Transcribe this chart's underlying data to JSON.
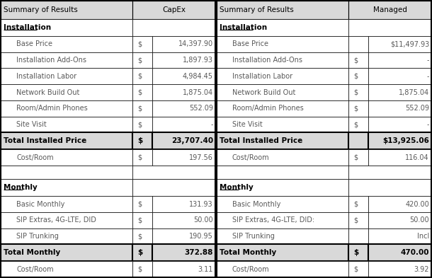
{
  "title_bg": "#d9d9d9",
  "total_bg": "#d9d9d9",
  "cell_bg": "#ffffff",
  "border_color": "#000000",
  "text_color": "#000000",
  "gray_text": "#595959",
  "fig_bg": "#ffffff",
  "left_table": {
    "header_label": "Summary of Results",
    "col_label": "CapEx",
    "sections": [
      {
        "section_label": "Installation",
        "rows": [
          {
            "label": "Base Price",
            "dollar": "$",
            "value": "14,397.90"
          },
          {
            "label": "Installation Add-Ons",
            "dollar": "$",
            "value": "1,897.93"
          },
          {
            "label": "Installation Labor",
            "dollar": "$",
            "value": "4,984.45"
          },
          {
            "label": "Network Build Out",
            "dollar": "$",
            "value": "1,875.04"
          },
          {
            "label": "Room/Admin Phones",
            "dollar": "$",
            "value": "552.09"
          },
          {
            "label": "Site Visit",
            "dollar": "$",
            "value": "-"
          }
        ],
        "total_label": "Total Installed Price",
        "total_dollar": "$",
        "total_value": "23,707.40",
        "sub_rows": [
          {
            "label": "Cost/Room",
            "dollar": "$",
            "value": "197.56"
          }
        ]
      },
      {
        "section_label": "Monthly",
        "rows": [
          {
            "label": "Basic Monthly",
            "dollar": "$",
            "value": "131.93"
          },
          {
            "label": "SIP Extras, 4G-LTE, DID",
            "dollar": "$",
            "value": "50.00"
          },
          {
            "label": "SIP Trunking",
            "dollar": "$",
            "value": "190.95"
          }
        ],
        "total_label": "Total Monthly",
        "total_dollar": "$",
        "total_value": "372.88",
        "sub_rows": [
          {
            "label": "Cost/Room",
            "dollar": "$",
            "value": "3.11"
          }
        ]
      }
    ]
  },
  "right_table": {
    "header_label": "Summary of Results",
    "col_label": "Managed",
    "sections": [
      {
        "section_label": "Installation",
        "rows": [
          {
            "label": "Base Price",
            "dollar": "",
            "value": "$11,497.93"
          },
          {
            "label": "Installation Add-Ons",
            "dollar": "$",
            "value": "-"
          },
          {
            "label": "Installation Labor",
            "dollar": "$",
            "value": "-"
          },
          {
            "label": "Network Build Out",
            "dollar": "$",
            "value": "1,875.04"
          },
          {
            "label": "Room/Admin Phones",
            "dollar": "$",
            "value": "552.09"
          },
          {
            "label": "Site Visit",
            "dollar": "$",
            "value": "-"
          }
        ],
        "total_label": "Total Installed Price",
        "total_dollar": "",
        "total_value": "$13,925.06",
        "sub_rows": [
          {
            "label": "Cost/Room",
            "dollar": "$",
            "value": "116.04"
          }
        ]
      },
      {
        "section_label": "Monthly",
        "rows": [
          {
            "label": "Basic Monthly",
            "dollar": "$",
            "value": "420.00"
          },
          {
            "label": "SIP Extras, 4G-LTE, DID:",
            "dollar": "$",
            "value": "50.00"
          },
          {
            "label": "SIP Trunking",
            "dollar": "",
            "value": "Incl"
          }
        ],
        "total_label": "Total Monthly",
        "total_dollar": "$",
        "total_value": "470.00",
        "sub_rows": [
          {
            "label": "Cost/Room",
            "dollar": "$",
            "value": "3.92"
          }
        ]
      }
    ]
  }
}
